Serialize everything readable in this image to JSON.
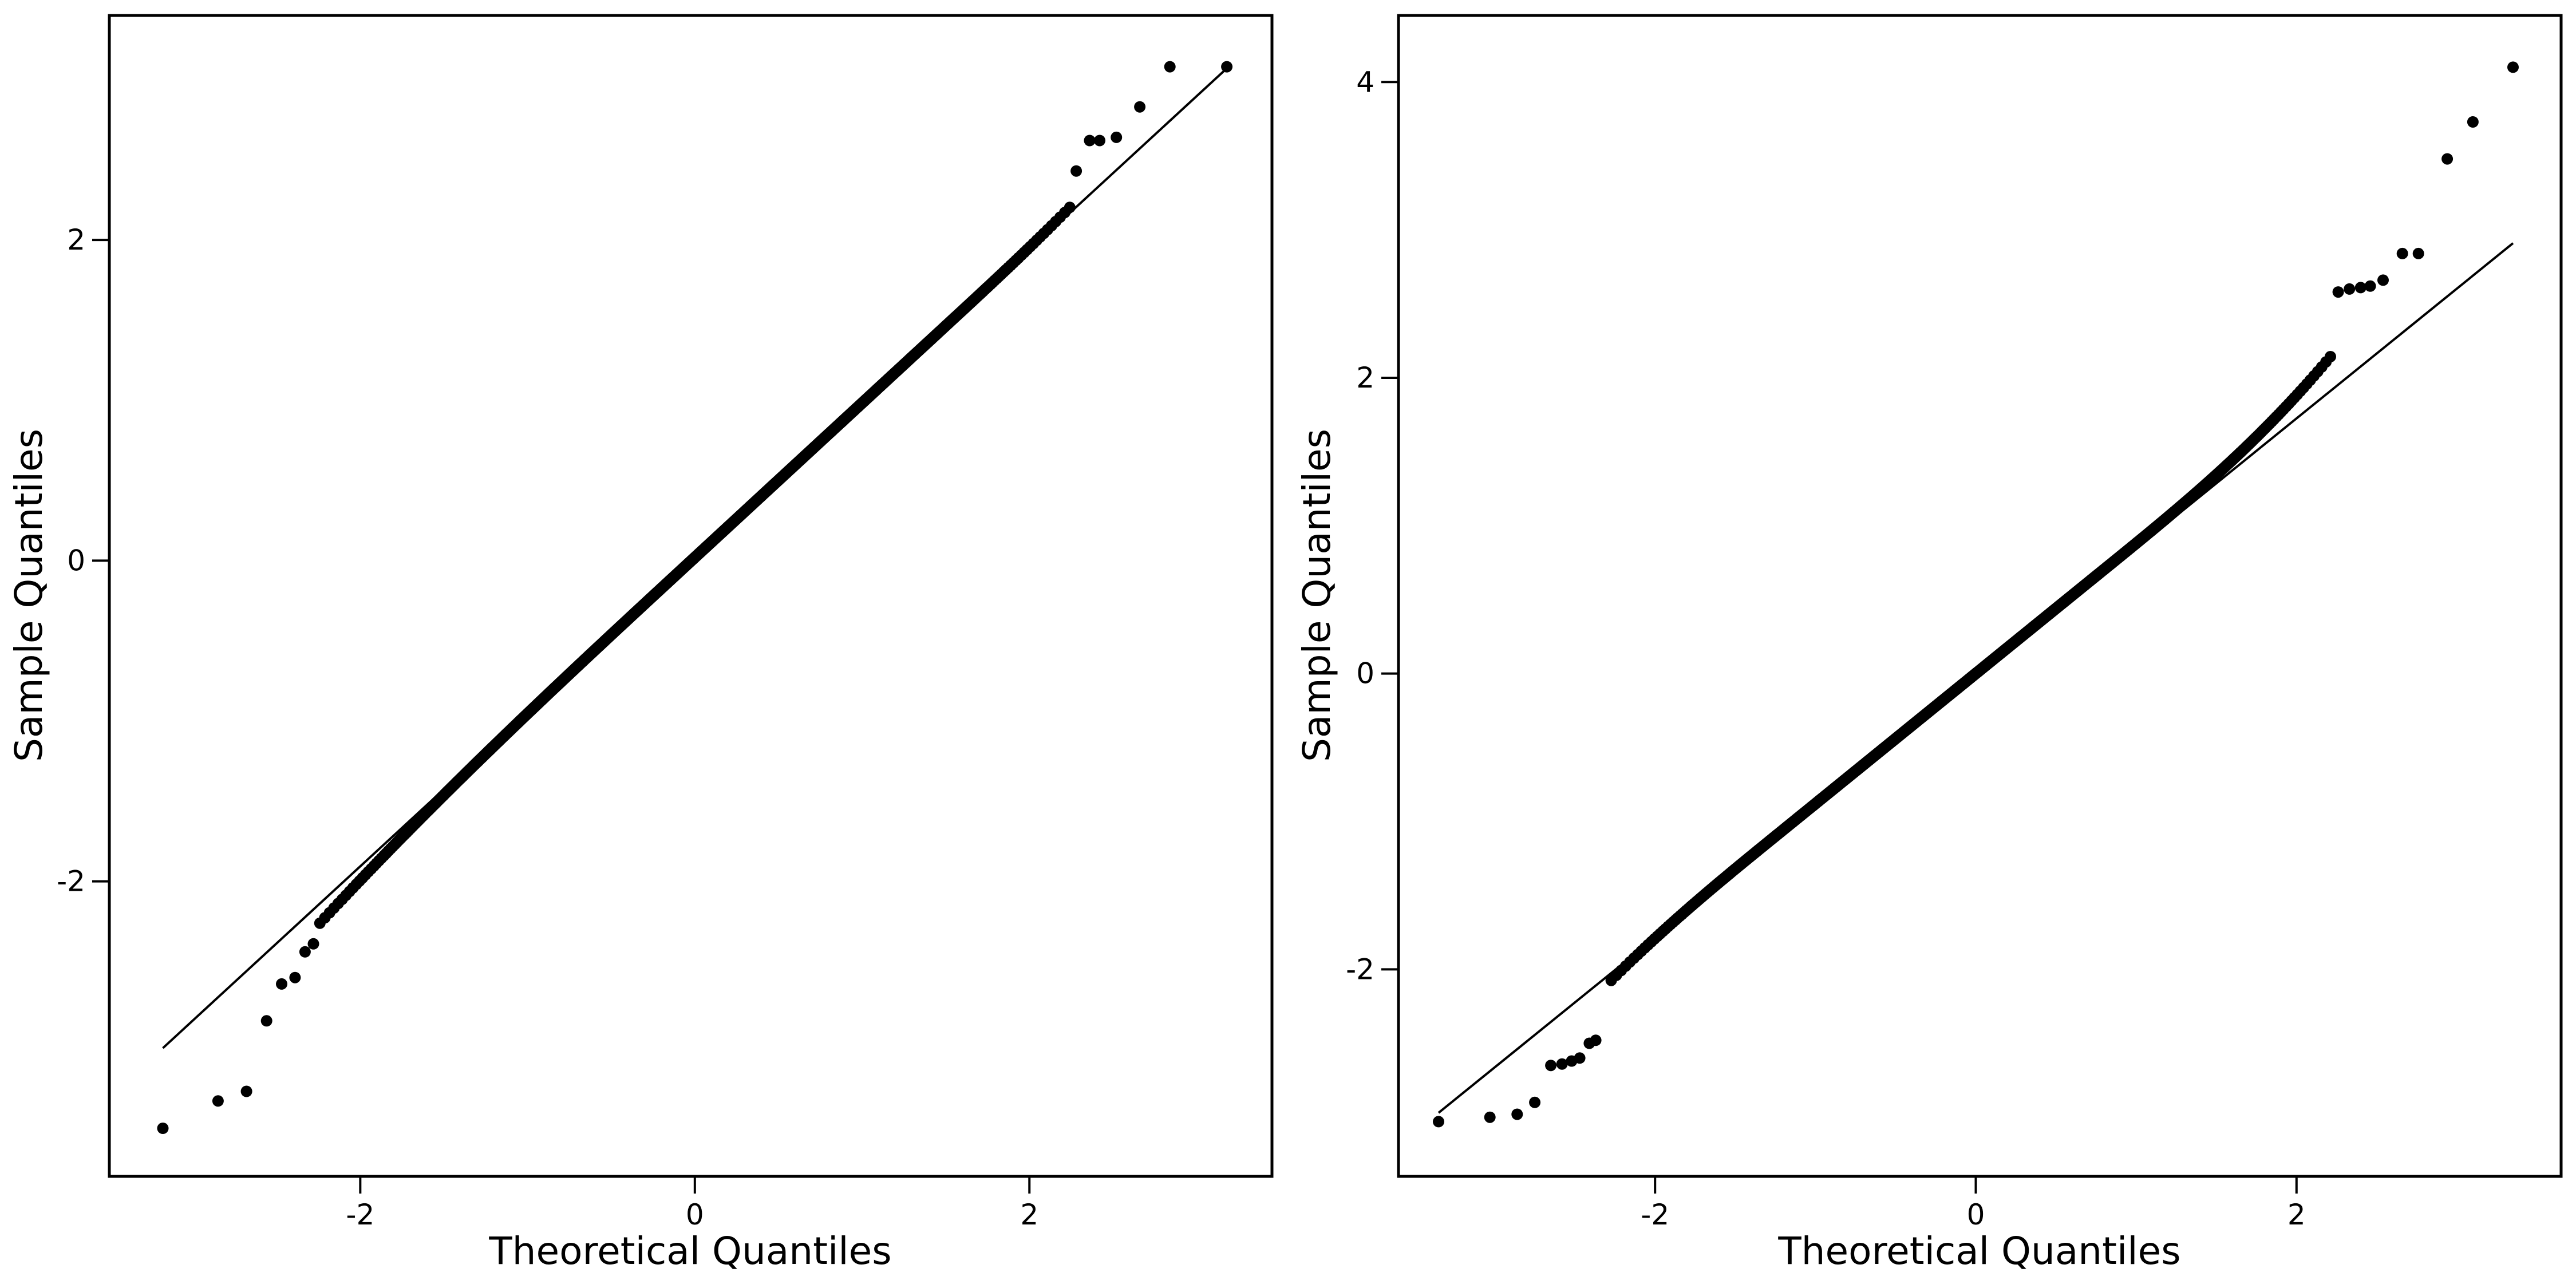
{
  "chart_data": [
    {
      "type": "scatter",
      "title": "",
      "xlabel": "Theoretical Quantiles",
      "ylabel": "Sample Quantiles",
      "xlim": [
        -3.5,
        3.45
      ],
      "ylim": [
        -3.84,
        3.4
      ],
      "xticks": [
        -2,
        0,
        2
      ],
      "yticks": [
        -2,
        0,
        2
      ],
      "xtick_labels": [
        "-2",
        "0",
        "2"
      ],
      "ytick_labels": [
        "-2",
        "0",
        "2"
      ],
      "grid": false,
      "marker_color": "#000000",
      "reference_line": {
        "x": [
          -3.18,
          3.18
        ],
        "y": [
          -3.04,
          3.07
        ]
      },
      "distribution": {
        "n": 1000,
        "intercept": 0.02,
        "slope": 0.963,
        "tail_shift": -0.17,
        "tail_power": 3
      },
      "extreme_points": [
        {
          "x": -3.18,
          "y": -3.54
        },
        {
          "x": -2.85,
          "y": -3.37
        },
        {
          "x": -2.68,
          "y": -3.31
        },
        {
          "x": -2.56,
          "y": -2.87
        },
        {
          "x": -2.47,
          "y": -2.64
        },
        {
          "x": -2.39,
          "y": -2.6
        },
        {
          "x": -2.33,
          "y": -2.44
        },
        {
          "x": -2.28,
          "y": -2.39
        },
        {
          "x": 2.28,
          "y": 2.43
        },
        {
          "x": 2.36,
          "y": 2.62
        },
        {
          "x": 2.42,
          "y": 2.62
        },
        {
          "x": 2.52,
          "y": 2.64
        },
        {
          "x": 2.66,
          "y": 2.83
        },
        {
          "x": 2.84,
          "y": 3.08
        },
        {
          "x": 3.18,
          "y": 3.08
        }
      ]
    },
    {
      "type": "scatter",
      "title": "",
      "xlabel": "Theoretical Quantiles",
      "ylabel": "Sample Quantiles",
      "xlim": [
        -3.6,
        3.65
      ],
      "ylim": [
        -3.4,
        4.45
      ],
      "xticks": [
        -2,
        0,
        2
      ],
      "yticks": [
        -2,
        0,
        2,
        4
      ],
      "xtick_labels": [
        "-2",
        "0",
        "2"
      ],
      "ytick_labels": [
        "-2",
        "0",
        "2",
        "4"
      ],
      "grid": false,
      "marker_color": "#000000",
      "reference_line": {
        "x": [
          -3.35,
          3.35
        ],
        "y": [
          -2.97,
          2.91
        ]
      },
      "distribution": {
        "n": 1000,
        "intercept": 0.0,
        "slope": 0.88,
        "tail_shift": 0.0,
        "tail_power": 3,
        "upper_coef": 0.07,
        "lower_coef": 0.06
      },
      "extreme_points": [
        {
          "x": -3.35,
          "y": -3.03
        },
        {
          "x": -3.03,
          "y": -3.0
        },
        {
          "x": -2.86,
          "y": -2.98
        },
        {
          "x": -2.75,
          "y": -2.9
        },
        {
          "x": -2.65,
          "y": -2.65
        },
        {
          "x": -2.58,
          "y": -2.64
        },
        {
          "x": -2.52,
          "y": -2.62
        },
        {
          "x": -2.47,
          "y": -2.6
        },
        {
          "x": -2.41,
          "y": -2.5
        },
        {
          "x": -2.37,
          "y": -2.48
        },
        {
          "x": 2.26,
          "y": 2.58
        },
        {
          "x": 2.33,
          "y": 2.6
        },
        {
          "x": 2.4,
          "y": 2.61
        },
        {
          "x": 2.46,
          "y": 2.62
        },
        {
          "x": 2.54,
          "y": 2.66
        },
        {
          "x": 2.66,
          "y": 2.84
        },
        {
          "x": 2.76,
          "y": 2.84
        },
        {
          "x": 2.94,
          "y": 3.48
        },
        {
          "x": 3.1,
          "y": 3.73
        },
        {
          "x": 3.35,
          "y": 4.1
        }
      ]
    }
  ]
}
